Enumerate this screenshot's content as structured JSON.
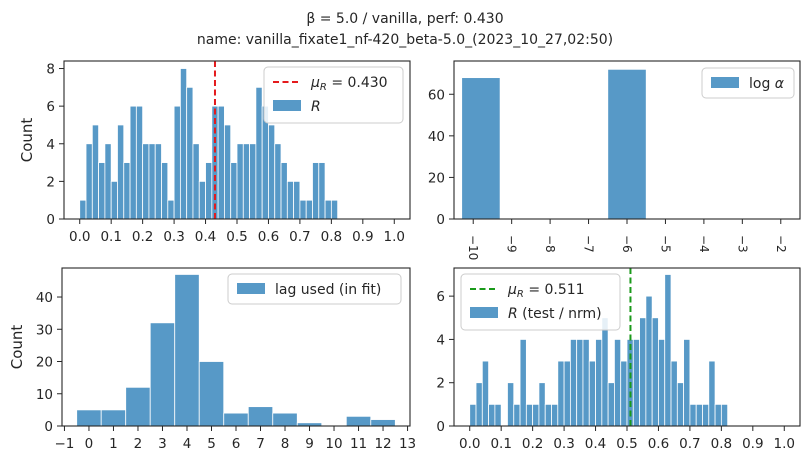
{
  "figure": {
    "title_line1": "β = 5.0   /   vanilla,       perf: 0.430",
    "title_line2": "name: vanilla_fixate1_nf-420_beta-5.0_(2023_10_27,02:50)"
  },
  "colors": {
    "bar": "#5799c7",
    "red_line": "#e41a1c",
    "green_line": "#1a9a1a",
    "axis": "#262626",
    "grid": "#dddddd"
  },
  "chart_data": [
    {
      "id": "tl",
      "type": "bar",
      "ylabel": "Count",
      "xlim": [
        -0.05,
        1.05
      ],
      "ylim": [
        0,
        8.4
      ],
      "xticks": [
        0.0,
        0.1,
        0.2,
        0.3,
        0.4,
        0.5,
        0.6,
        0.7,
        0.8,
        0.9,
        1.0
      ],
      "xtick_labels": [
        "0.0",
        "0.1",
        "0.2",
        "0.3",
        "0.4",
        "0.5",
        "0.6",
        "0.7",
        "0.8",
        "0.9",
        "1.0"
      ],
      "yticks": [
        0,
        2,
        4,
        6,
        8
      ],
      "bin_start": 0.0,
      "bin_width": 0.02,
      "values": [
        1,
        4,
        5,
        3,
        4,
        2,
        5,
        3,
        6,
        6,
        4,
        4,
        4,
        3,
        1,
        6,
        8,
        7,
        4,
        2,
        3,
        6,
        6,
        5,
        3,
        4,
        4,
        4,
        7,
        6,
        5,
        4,
        3,
        2,
        2,
        1,
        1,
        3,
        3,
        1,
        1
      ],
      "vline": {
        "x": 0.43,
        "label": "μ_R = 0.430",
        "style": "dashed",
        "color": "red"
      },
      "legend": [
        {
          "kind": "line",
          "label": "μ_R = 0.430"
        },
        {
          "kind": "patch",
          "label": "R"
        }
      ],
      "legend_position": "top-right"
    },
    {
      "id": "tr",
      "type": "bar",
      "xlim": [
        -10.5,
        -1.5
      ],
      "ylim": [
        0,
        76
      ],
      "xticks": [
        -10,
        -9,
        -8,
        -7,
        -6,
        -5,
        -4,
        -3,
        -2
      ],
      "xtick_labels": [
        "−10",
        "−9",
        "−8",
        "−7",
        "−6",
        "−5",
        "−4",
        "−3",
        "−2"
      ],
      "yticks": [
        0,
        20,
        40,
        60
      ],
      "bars": [
        {
          "x_start": -10.3,
          "x_end": -9.3,
          "value": 68
        },
        {
          "x_start": -6.5,
          "x_end": -5.5,
          "value": 72
        }
      ],
      "legend": [
        {
          "kind": "patch",
          "label": "log α"
        }
      ],
      "legend_position": "top-right"
    },
    {
      "id": "bl",
      "type": "bar",
      "ylabel": "Count",
      "xlim": [
        -1.1,
        13.1
      ],
      "ylim": [
        0,
        49
      ],
      "xticks": [
        -1,
        0,
        1,
        2,
        3,
        4,
        5,
        6,
        7,
        8,
        9,
        10,
        11,
        12,
        13
      ],
      "xtick_labels": [
        "−1",
        "0",
        "1",
        "2",
        "3",
        "4",
        "5",
        "6",
        "7",
        "8",
        "9",
        "10",
        "11",
        "12",
        "13"
      ],
      "yticks": [
        0,
        10,
        20,
        30,
        40
      ],
      "bin_start": -0.5,
      "bin_width": 1.0,
      "values": [
        5,
        5,
        12,
        32,
        47,
        20,
        4,
        6,
        4,
        1,
        0,
        3,
        2
      ],
      "legend": [
        {
          "kind": "patch",
          "label": "lag used (in fit)"
        }
      ],
      "legend_position": "top-right"
    },
    {
      "id": "br",
      "type": "bar",
      "xlim": [
        -0.05,
        1.05
      ],
      "ylim": [
        0,
        7.3
      ],
      "xticks": [
        0.0,
        0.1,
        0.2,
        0.3,
        0.4,
        0.5,
        0.6,
        0.7,
        0.8,
        0.9,
        1.0
      ],
      "xtick_labels": [
        "0.0",
        "0.1",
        "0.2",
        "0.3",
        "0.4",
        "0.5",
        "0.6",
        "0.7",
        "0.8",
        "0.9",
        "1.0"
      ],
      "yticks": [
        0,
        2,
        4,
        6
      ],
      "bin_start": 0.0,
      "bin_width": 0.02,
      "values": [
        1,
        2,
        3,
        1,
        1,
        0,
        2,
        1,
        4,
        1,
        1,
        2,
        1,
        1,
        3,
        3,
        4,
        4,
        4,
        3,
        4,
        5,
        2,
        4,
        3,
        4,
        4,
        5,
        6,
        5,
        4,
        7,
        3,
        2,
        4,
        1,
        1,
        1,
        3,
        1,
        1
      ],
      "vline": {
        "x": 0.511,
        "label": "μ_R = 0.511",
        "style": "dashed",
        "color": "green"
      },
      "legend": [
        {
          "kind": "line",
          "label": "μ_R = 0.511"
        },
        {
          "kind": "patch",
          "label": "R (test / nrm)"
        }
      ],
      "legend_position": "top-left"
    }
  ]
}
